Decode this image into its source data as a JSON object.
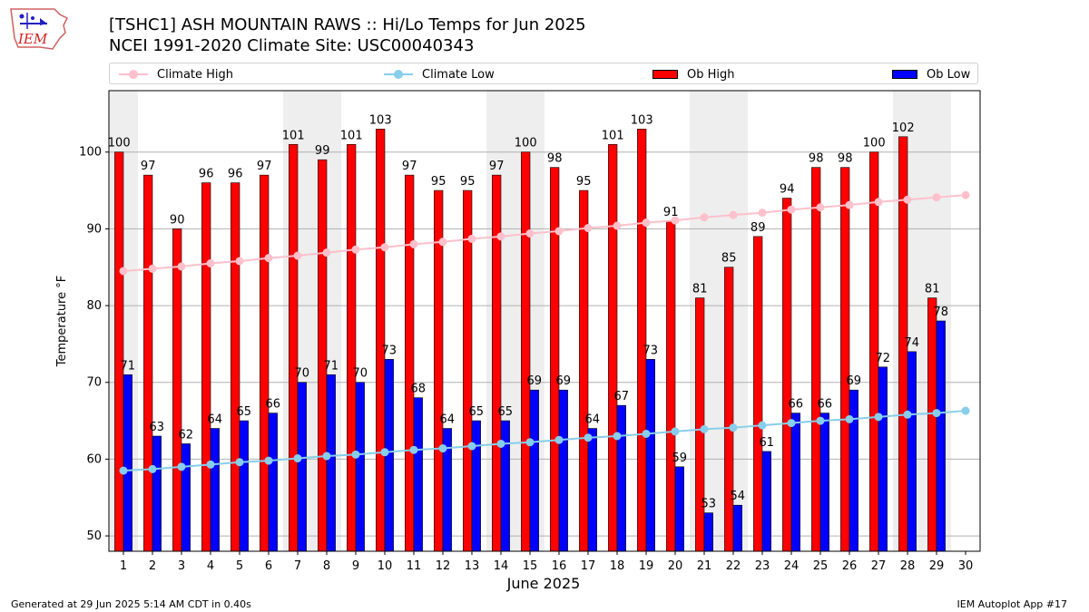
{
  "header": {
    "logo_text": "IEM",
    "title_line1": "[TSHC1] ASH MOUNTAIN RAWS :: Hi/Lo Temps for Jun 2025",
    "title_line2": "NCEI 1991-2020 Climate Site: USC00040343"
  },
  "legend": {
    "climate_high": "Climate High",
    "climate_low": "Climate Low",
    "ob_high": "Ob High",
    "ob_low": "Ob Low"
  },
  "footer": {
    "left": "Generated at 29 Jun 2025 5:14 AM CDT in 0.40s",
    "right": "IEM Autoplot App #17"
  },
  "colors": {
    "ob_high": "#ff0000",
    "ob_low": "#0000ff",
    "climate_high": "#ffc0cb",
    "climate_low": "#87ceeb",
    "weekend_band": "#eeeeee"
  },
  "chart_data": {
    "type": "bar",
    "xlabel": "June 2025",
    "ylabel": "Temperature °F",
    "ylim": [
      48,
      108
    ],
    "yticks": [
      50,
      60,
      70,
      80,
      90,
      100
    ],
    "grid": "horizontal",
    "legend_position": "top",
    "categories": [
      "1",
      "2",
      "3",
      "4",
      "5",
      "6",
      "7",
      "8",
      "9",
      "10",
      "11",
      "12",
      "13",
      "14",
      "15",
      "16",
      "17",
      "18",
      "19",
      "20",
      "21",
      "22",
      "23",
      "24",
      "25",
      "26",
      "27",
      "28",
      "29",
      "30"
    ],
    "weekend_days": [
      1,
      7,
      8,
      14,
      15,
      21,
      22,
      28,
      29
    ],
    "series": [
      {
        "name": "Ob High",
        "kind": "bar",
        "values": [
          100,
          97,
          90,
          96,
          96,
          97,
          101,
          99,
          101,
          103,
          97,
          95,
          95,
          97,
          100,
          98,
          95,
          101,
          103,
          91,
          81,
          85,
          89,
          94,
          98,
          98,
          100,
          102,
          81,
          null
        ]
      },
      {
        "name": "Ob Low",
        "kind": "bar",
        "values": [
          71,
          63,
          62,
          64,
          65,
          66,
          70,
          71,
          70,
          73,
          68,
          64,
          65,
          65,
          69,
          69,
          64,
          67,
          73,
          59,
          53,
          54,
          61,
          66,
          66,
          69,
          72,
          74,
          78,
          null
        ]
      },
      {
        "name": "Climate High",
        "kind": "line",
        "values": [
          84.5,
          84.8,
          85.1,
          85.5,
          85.8,
          86.2,
          86.5,
          86.9,
          87.3,
          87.6,
          88.0,
          88.3,
          88.7,
          89.0,
          89.4,
          89.7,
          90.1,
          90.4,
          90.8,
          91.1,
          91.5,
          91.8,
          92.1,
          92.5,
          92.8,
          93.1,
          93.5,
          93.8,
          94.1,
          94.4
        ]
      },
      {
        "name": "Climate Low",
        "kind": "line",
        "values": [
          58.5,
          58.7,
          59.0,
          59.3,
          59.6,
          59.8,
          60.1,
          60.4,
          60.6,
          60.9,
          61.2,
          61.4,
          61.7,
          62.0,
          62.2,
          62.5,
          62.8,
          63.0,
          63.3,
          63.6,
          63.9,
          64.1,
          64.4,
          64.7,
          65.0,
          65.2,
          65.5,
          65.8,
          66.0,
          66.3
        ]
      }
    ]
  }
}
